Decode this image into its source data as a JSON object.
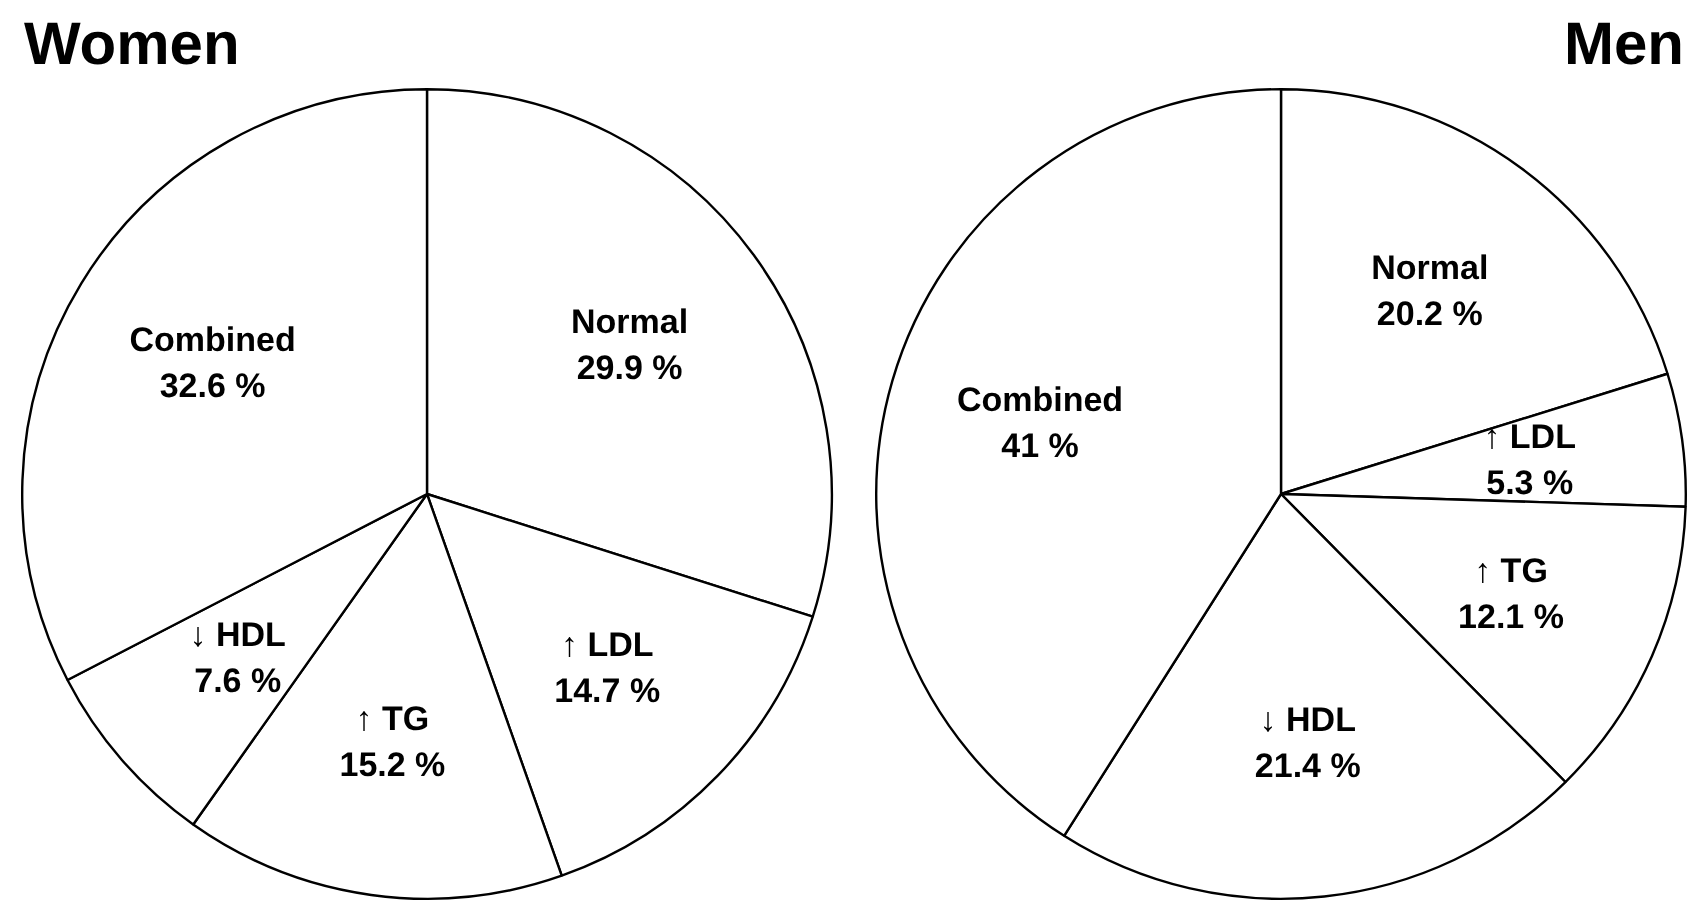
{
  "chart_data": [
    {
      "type": "pie",
      "title": "Women",
      "categories": [
        "Normal",
        "↑ LDL",
        "↑ TG",
        "↓ HDL",
        "Combined"
      ],
      "values": [
        29.9,
        14.7,
        15.2,
        7.6,
        32.6
      ],
      "colors": [
        "#ffffff",
        "#ffffff",
        "#ffffff",
        "#ffffff",
        "#ffffff"
      ],
      "value_labels": [
        "29.9 %",
        "14.7 %",
        "15.2 %",
        "7.6 %",
        "32.6 %"
      ],
      "legend": false
    },
    {
      "type": "pie",
      "title": "Men",
      "categories": [
        "Normal",
        "↑ LDL",
        "↑ TG",
        "↓ HDL",
        "Combined"
      ],
      "values": [
        20.2,
        5.3,
        12.1,
        21.4,
        41
      ],
      "colors": [
        "#ffffff",
        "#ffffff",
        "#ffffff",
        "#ffffff",
        "#ffffff"
      ],
      "value_labels": [
        "20.2 %",
        "5.3 %",
        "12.1 %",
        "21.4 %",
        "41 %"
      ],
      "legend": false
    }
  ]
}
